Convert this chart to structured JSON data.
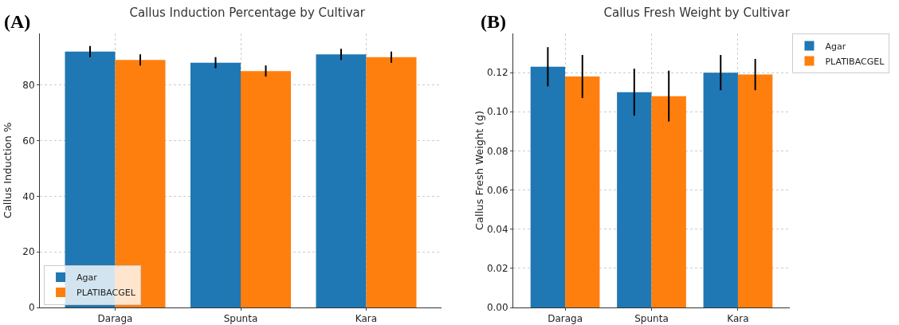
{
  "chart_data": [
    {
      "type": "bar",
      "title": "Callus Induction Percentage by Cultivar",
      "ylabel": "Callus Induction %",
      "annotations": [
        "(A)"
      ],
      "categories": [
        "Daraga",
        "Spunta",
        "Kara"
      ],
      "series": [
        {
          "name": "Agar",
          "color": "#1f77b4",
          "values": [
            92,
            88,
            91
          ],
          "errors": [
            2,
            2,
            2
          ]
        },
        {
          "name": "PLATIBACGEL",
          "color": "#ff7f0e",
          "values": [
            89,
            85,
            90
          ],
          "errors": [
            2,
            2,
            2
          ]
        }
      ],
      "ylim": [
        0,
        98.5
      ],
      "yticks": [
        0,
        20,
        40,
        60,
        80
      ],
      "grid": true,
      "legend": "bottom left"
    },
    {
      "type": "bar",
      "title": "Callus Fresh Weight by Cultivar",
      "ylabel": "Callus Fresh Weight (g)",
      "annotations": [
        "(B)"
      ],
      "categories": [
        "Daraga",
        "Spunta",
        "Kara"
      ],
      "series": [
        {
          "name": "Agar",
          "color": "#1f77b4",
          "values": [
            0.123,
            0.11,
            0.12
          ],
          "errors": [
            0.01,
            0.012,
            0.009
          ]
        },
        {
          "name": "PLATIBACGEL",
          "color": "#ff7f0e",
          "values": [
            0.118,
            0.108,
            0.119
          ],
          "errors": [
            0.011,
            0.013,
            0.008
          ]
        }
      ],
      "ylim": [
        0,
        0.14
      ],
      "yticks": [
        {
          "value": 0,
          "label": "0.00"
        },
        {
          "value": 0.02,
          "label": "0.02"
        },
        {
          "value": 0.04,
          "label": "0.04"
        },
        {
          "value": 0.06,
          "label": "0.06"
        },
        {
          "value": 0.08,
          "label": "0.08"
        },
        {
          "value": 0.1,
          "label": "0.10"
        },
        {
          "value": 0.12,
          "label": "0.12"
        }
      ],
      "grid": true,
      "legend": "top right"
    }
  ]
}
